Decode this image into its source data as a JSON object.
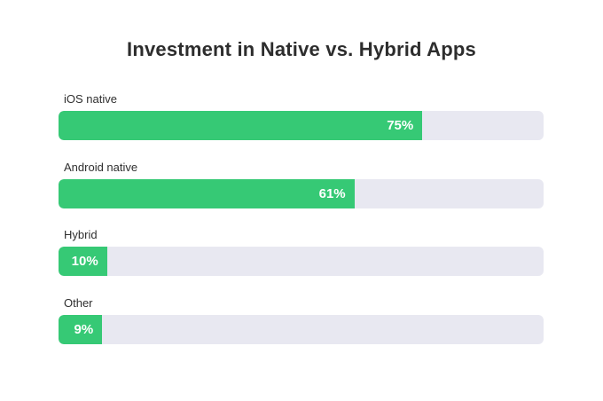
{
  "chart_data": {
    "type": "bar",
    "orientation": "horizontal",
    "title": "Investment in Native vs. Hybrid Apps",
    "categories": [
      "iOS native",
      "Android native",
      "Hybrid",
      "Other"
    ],
    "values": [
      75,
      61,
      10,
      9
    ],
    "value_labels": [
      "75%",
      "61%",
      "10%",
      "9%"
    ],
    "xlim": [
      0,
      100
    ],
    "unit": "%",
    "grid": false,
    "legend": "none",
    "colors": {
      "fill": "#36c975",
      "track": "#e8e8f1",
      "value_text": "#ffffff"
    }
  }
}
